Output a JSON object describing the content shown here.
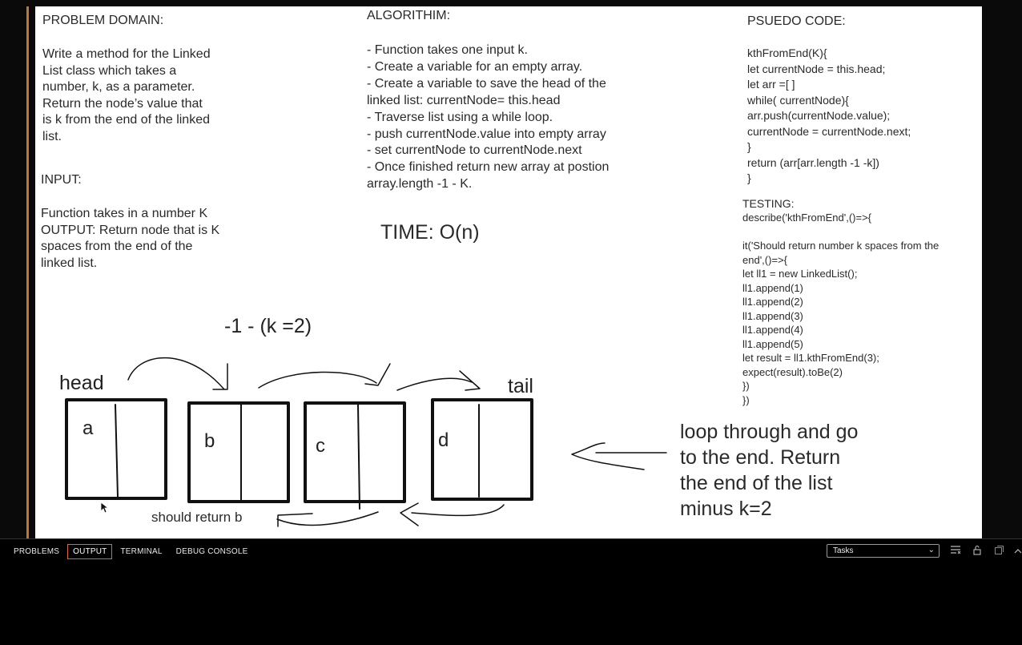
{
  "problem_domain": {
    "heading": "PROBLEM DOMAIN:",
    "text": "Write a method for the Linked\nList class which takes a\nnumber, k, as a parameter.\nReturn the node’s value that\nis k from the end of the linked\nlist."
  },
  "input": {
    "heading": "INPUT:",
    "text": "Function takes in a number K\nOUTPUT: Return node that is K\nspaces from the end of the\nlinked list."
  },
  "algorithm": {
    "heading": "ALGORITHIM:",
    "text": "- Function takes one input k.\n- Create a variable for an empty array.\n- Create a variable to save the head of the\nlinked list: currentNode= this.head\n- Traverse list using a while loop.\n- push currentNode.value into empty array\n- set currentNode to currentNode.next\n- Once finished return new array at postion\narray.length -1 - K."
  },
  "time": "TIME: O(n)",
  "pseudo_code": {
    "heading": "PSUEDO CODE:",
    "text": "kthFromEnd(K){\nlet currentNode = this.head;\nlet arr =[ ]\nwhile( currentNode){\narr.push(currentNode.value);\ncurrentNode = currentNode.next;\n   }\nreturn (arr[arr.length -1 -k])\n}"
  },
  "testing": {
    "heading": "TESTING:",
    "text": "describe('kthFromEnd',()=>{\n\n  it('Should return number k spaces from the\nend',()=>{\n    let ll1 = new LinkedList();\n    ll1.append(1)\n    ll1.append(2)\n    ll1.append(3)\n    ll1.append(4)\n    ll1.append(5)\n    let result = ll1.kthFromEnd(3);\n    expect(result).toBe(2)\n  })\n})"
  },
  "diagram": {
    "formula": "-1 - (k =2)",
    "head_label": "head",
    "tail_label": "tail",
    "nodes": [
      "a",
      "b",
      "c",
      "d"
    ],
    "note": "should return b",
    "explanation": "loop through and go\nto the end. Return\nthe end of the list\nminus k=2"
  },
  "panel": {
    "tabs": [
      "PROBLEMS",
      "OUTPUT",
      "TERMINAL",
      "DEBUG CONSOLE"
    ],
    "active_tab": "OUTPUT",
    "task_select": "Tasks"
  }
}
